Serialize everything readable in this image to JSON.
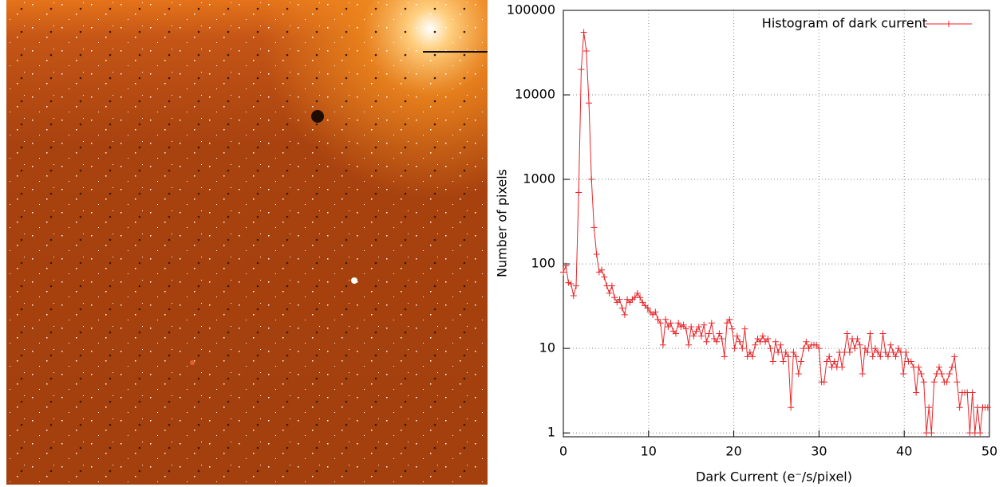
{
  "chart_data": {
    "type": "line",
    "xlabel": "Dark Current (e⁻/s/pixel)",
    "ylabel": "Number of pixels",
    "x": [
      0,
      0.3,
      0.6,
      0.9,
      1.2,
      1.5,
      1.8,
      2.1,
      2.4,
      2.7,
      3,
      3.3,
      3.6,
      3.9,
      4.2,
      4.5,
      4.8,
      5.1,
      5.4,
      5.7,
      6,
      6.3,
      6.6,
      6.9,
      7.2,
      7.5,
      7.8,
      8.1,
      8.4,
      8.7,
      9,
      9.3,
      9.6,
      9.9,
      10.2,
      10.5,
      10.8,
      11.1,
      11.4,
      11.7,
      12,
      12.3,
      12.6,
      12.9,
      13.2,
      13.5,
      13.8,
      14.1,
      14.4,
      14.7,
      15,
      15.3,
      15.6,
      15.9,
      16.2,
      16.5,
      16.8,
      17.1,
      17.4,
      17.7,
      18,
      18.3,
      18.6,
      18.9,
      19.2,
      19.5,
      19.8,
      20.1,
      20.4,
      20.7,
      21,
      21.3,
      21.6,
      21.9,
      22.2,
      22.5,
      22.8,
      23.1,
      23.4,
      23.7,
      24,
      24.3,
      24.6,
      24.9,
      25.2,
      25.5,
      25.8,
      26.1,
      26.4,
      26.7,
      27,
      27.3,
      27.6,
      27.9,
      28.2,
      28.5,
      28.8,
      29.1,
      29.4,
      29.7,
      30,
      30.3,
      30.6,
      30.9,
      31.2,
      31.5,
      31.8,
      32.1,
      32.4,
      32.7,
      33,
      33.3,
      33.6,
      33.9,
      34.2,
      34.5,
      34.8,
      35.1,
      35.4,
      35.7,
      36,
      36.3,
      36.6,
      36.9,
      37.2,
      37.5,
      37.8,
      38.1,
      38.4,
      38.7,
      39,
      39.3,
      39.6,
      39.9,
      40.2,
      40.5,
      40.8,
      41.1,
      41.4,
      41.7,
      42,
      42.3,
      42.6,
      42.9,
      43.2,
      43.5,
      43.8,
      44.1,
      44.4,
      44.7,
      45,
      45.3,
      45.6,
      45.9,
      46.2,
      46.5,
      46.8,
      47.1,
      47.4,
      47.7,
      48,
      48.3,
      48.6,
      48.9,
      49.2,
      49.5,
      49.8
    ],
    "series": [
      {
        "name": "Histogram of dark current",
        "color": "#e8262a",
        "values": [
          80,
          95,
          60,
          58,
          42,
          55,
          700,
          20000,
          55000,
          33000,
          8000,
          1000,
          270,
          130,
          80,
          85,
          70,
          55,
          45,
          55,
          40,
          35,
          38,
          30,
          25,
          38,
          35,
          38,
          40,
          45,
          40,
          35,
          32,
          30,
          27,
          25,
          27,
          22,
          20,
          11,
          22,
          18,
          20,
          16,
          15,
          20,
          18,
          19,
          17,
          11,
          18,
          14,
          16,
          18,
          14,
          19,
          12,
          15,
          20,
          13,
          12,
          15,
          13,
          8,
          20,
          22,
          17,
          10,
          14,
          12,
          10,
          17,
          8,
          9,
          8,
          11,
          13,
          12,
          14,
          12,
          13,
          10,
          7,
          12,
          9,
          11,
          7,
          9,
          8,
          2,
          9,
          8,
          5,
          7,
          10,
          12,
          10,
          11,
          11,
          11,
          10,
          4,
          4,
          7,
          8,
          6,
          7,
          6,
          9,
          6,
          9,
          15,
          9,
          13,
          10,
          13,
          11,
          5,
          10,
          9,
          15,
          8,
          10,
          9,
          8,
          15,
          9,
          8,
          11,
          9,
          8,
          10,
          9,
          5,
          9,
          7,
          7,
          6,
          3,
          6,
          5,
          4,
          1,
          2,
          1,
          4,
          5,
          6,
          5,
          4,
          4,
          5,
          6,
          8,
          4,
          2,
          3,
          3,
          3,
          1,
          3,
          1,
          2,
          1,
          2,
          2,
          2
        ]
      }
    ],
    "xlim": [
      0,
      50
    ],
    "xticks": [
      0,
      10,
      20,
      30,
      40,
      50
    ],
    "ylim": [
      0.9,
      100000
    ],
    "yticks": [
      1,
      10,
      100,
      1000,
      10000,
      100000
    ],
    "ylog": true,
    "grid": true,
    "legend": "top-right"
  }
}
